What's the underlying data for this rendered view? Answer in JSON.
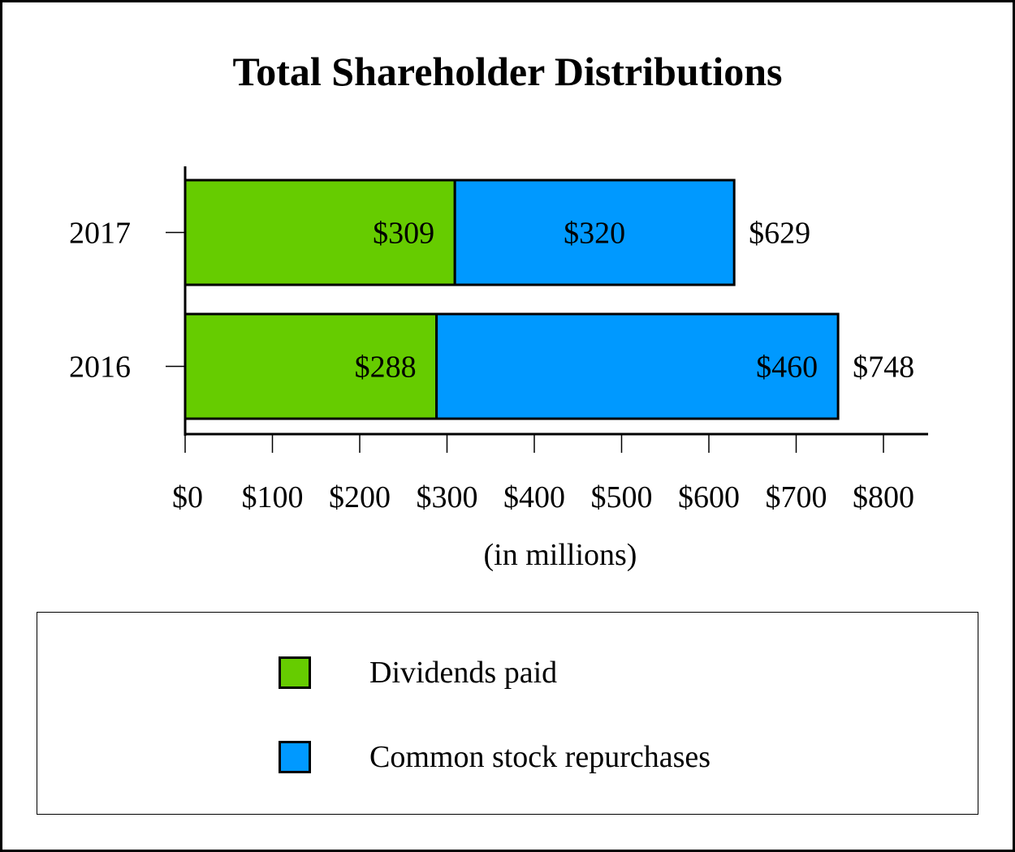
{
  "chart_data": {
    "type": "bar",
    "orientation": "horizontal",
    "stacked": true,
    "title": "Total Shareholder Distributions",
    "xlabel": "(in millions)",
    "ylabel": "",
    "categories": [
      "2017",
      "2016"
    ],
    "series": [
      {
        "name": "Dividends paid",
        "color": "#66cc00",
        "values": [
          309,
          288
        ],
        "labels": [
          "$309",
          "$288"
        ]
      },
      {
        "name": "Common stock repurchases",
        "color": "#0099ff",
        "values": [
          320,
          460
        ],
        "labels": [
          "$320",
          "$460"
        ]
      }
    ],
    "totals": [
      629,
      748
    ],
    "total_labels": [
      "$629",
      "$748"
    ],
    "xlim": [
      0,
      800
    ],
    "xticks": [
      0,
      100,
      200,
      300,
      400,
      500,
      600,
      700,
      800
    ],
    "xtick_labels": [
      "$0",
      "$100",
      "$200",
      "$300",
      "$400",
      "$500",
      "$600",
      "$700",
      "$800"
    ],
    "grid": false,
    "legend_position": "bottom"
  }
}
